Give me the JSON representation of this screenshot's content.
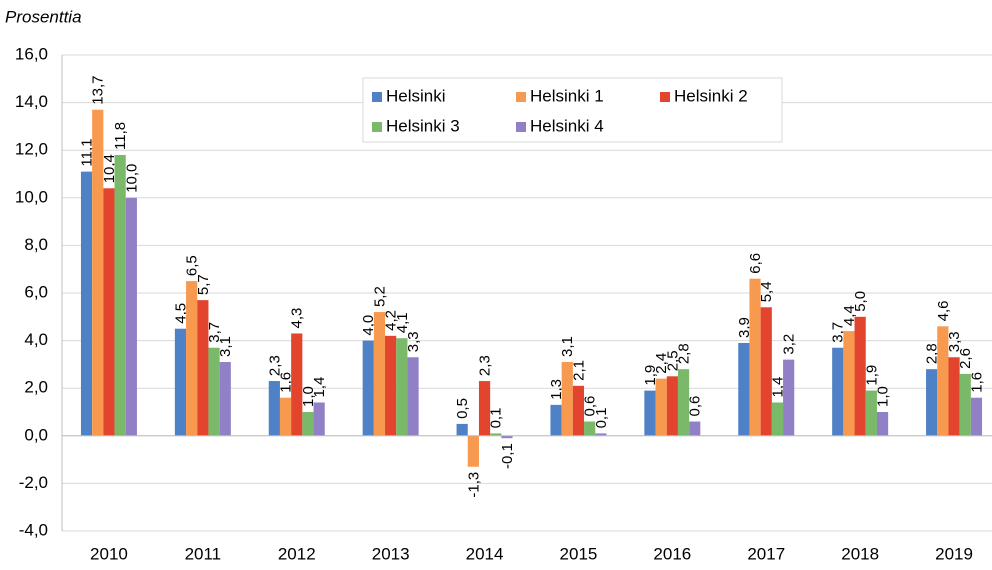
{
  "chart_data": {
    "type": "bar",
    "ylabel": "Prosenttia",
    "categories": [
      "2010",
      "2011",
      "2012",
      "2013",
      "2014",
      "2015",
      "2016",
      "2017",
      "2018",
      "2019"
    ],
    "series": [
      {
        "name": "Helsinki",
        "color": "#4f81c6",
        "values": [
          11.1,
          4.5,
          2.3,
          4.0,
          0.5,
          1.3,
          1.9,
          3.9,
          3.7,
          2.8
        ],
        "value_labels": [
          "11,1",
          "4,5",
          "2,3",
          "4,0",
          "0,5",
          "1,3",
          "1,9",
          "3,9",
          "3,7",
          "2,8"
        ]
      },
      {
        "name": "Helsinki 1",
        "color": "#f79a4f",
        "values": [
          13.7,
          6.5,
          1.6,
          5.2,
          -1.3,
          3.1,
          2.4,
          6.6,
          4.4,
          4.6
        ],
        "value_labels": [
          "13,7",
          "6,5",
          "1,6",
          "5,2",
          "-1,3",
          "3,1",
          "2,4",
          "6,6",
          "4,4",
          "4,6"
        ]
      },
      {
        "name": "Helsinki 2",
        "color": "#e2442e",
        "values": [
          10.4,
          5.7,
          4.3,
          4.2,
          2.3,
          2.1,
          2.5,
          5.4,
          5.0,
          3.3
        ],
        "value_labels": [
          "10,4",
          "5,7",
          "4,3",
          "4,2",
          "2,3",
          "2,1",
          "2,5",
          "5,4",
          "5,0",
          "3,3"
        ]
      },
      {
        "name": "Helsinki 3",
        "color": "#7ab86a",
        "values": [
          11.8,
          3.7,
          1.0,
          4.1,
          0.1,
          0.6,
          2.8,
          1.4,
          1.9,
          2.6
        ],
        "value_labels": [
          "11,8",
          "3,7",
          "1,0",
          "4,1",
          "0,1",
          "0,6",
          "2,8",
          "1,4",
          "1,9",
          "2,6"
        ]
      },
      {
        "name": "Helsinki 4",
        "color": "#9280c6",
        "values": [
          10.0,
          3.1,
          1.4,
          3.3,
          -0.1,
          0.1,
          0.6,
          3.2,
          1.0,
          1.6
        ],
        "value_labels": [
          "10,0",
          "3,1",
          "1,4",
          "3,3",
          "-0,1",
          "0,1",
          "0,6",
          "3,2",
          "1,0",
          "1,6"
        ]
      }
    ],
    "ylim": [
      -4,
      16
    ],
    "yticks": [
      {
        "value": -4,
        "label": "-4,0"
      },
      {
        "value": -2,
        "label": "-2,0"
      },
      {
        "value": 0,
        "label": "0,0"
      },
      {
        "value": 2,
        "label": "2,0"
      },
      {
        "value": 4,
        "label": "4,0"
      },
      {
        "value": 6,
        "label": "6,0"
      },
      {
        "value": 8,
        "label": "8,0"
      },
      {
        "value": 10,
        "label": "10,0"
      },
      {
        "value": 12,
        "label": "12,0"
      },
      {
        "value": 14,
        "label": "14,0"
      },
      {
        "value": 16,
        "label": "16,0"
      }
    ],
    "grid": true
  }
}
